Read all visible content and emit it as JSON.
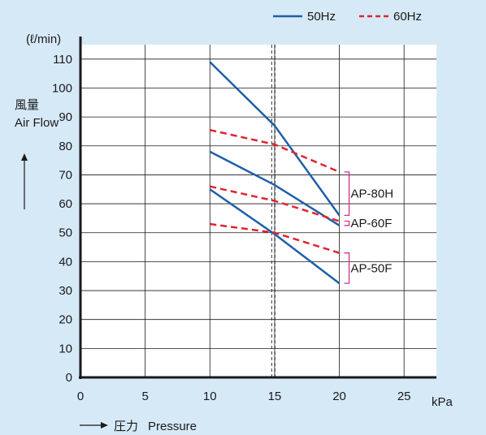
{
  "chart_data": {
    "type": "line",
    "y_unit": "(ℓ/min)",
    "ylabel_jp": "風量",
    "ylabel_en": "Air Flow",
    "x_unit": "kPa",
    "xlabel_jp": "圧力",
    "xlabel_en": "Pressure",
    "xlim": [
      0,
      27.5
    ],
    "ylim": [
      0,
      115
    ],
    "x_ticks": [
      0,
      5,
      10,
      15,
      20,
      25
    ],
    "y_ticks": [
      0,
      10,
      20,
      30,
      40,
      50,
      60,
      70,
      80,
      90,
      100,
      110
    ],
    "grid": true,
    "legend_position": "top-right",
    "legend": [
      {
        "label": "50Hz",
        "style": "solid",
        "color": "#1f5fa8"
      },
      {
        "label": "60Hz",
        "style": "dashed",
        "color": "#e0242e"
      }
    ],
    "reference_line": {
      "x": 14.9,
      "style": "double-dashed"
    },
    "series": [
      {
        "model": "AP-80H",
        "freq": "50Hz",
        "x": [
          10,
          15,
          20
        ],
        "y": [
          109,
          87,
          56
        ]
      },
      {
        "model": "AP-80H",
        "freq": "60Hz",
        "x": [
          10,
          15,
          20
        ],
        "y": [
          85.5,
          80.5,
          71
        ]
      },
      {
        "model": "AP-60F",
        "freq": "50Hz",
        "x": [
          10,
          15,
          20
        ],
        "y": [
          78,
          66.5,
          52.5
        ]
      },
      {
        "model": "AP-60F",
        "freq": "60Hz",
        "x": [
          10,
          15,
          20
        ],
        "y": [
          66,
          61,
          54
        ]
      },
      {
        "model": "AP-50F",
        "freq": "50Hz",
        "x": [
          10,
          15,
          20
        ],
        "y": [
          65,
          49.5,
          32.5
        ]
      },
      {
        "model": "AP-50F",
        "freq": "60Hz",
        "x": [
          10,
          15,
          20
        ],
        "y": [
          53,
          50,
          43
        ]
      }
    ],
    "model_labels": [
      {
        "label": "AP-80H",
        "y_range": [
          56,
          71
        ]
      },
      {
        "label": "AP-60F",
        "y_range": [
          52.5,
          54
        ]
      },
      {
        "label": "AP-50F",
        "y_range": [
          32.5,
          43
        ]
      }
    ],
    "colors": {
      "accent_50hz": "#1f5fa8",
      "accent_60hz": "#e0242e",
      "bracket": "#d0308f",
      "background": "#d6e9f7"
    }
  }
}
